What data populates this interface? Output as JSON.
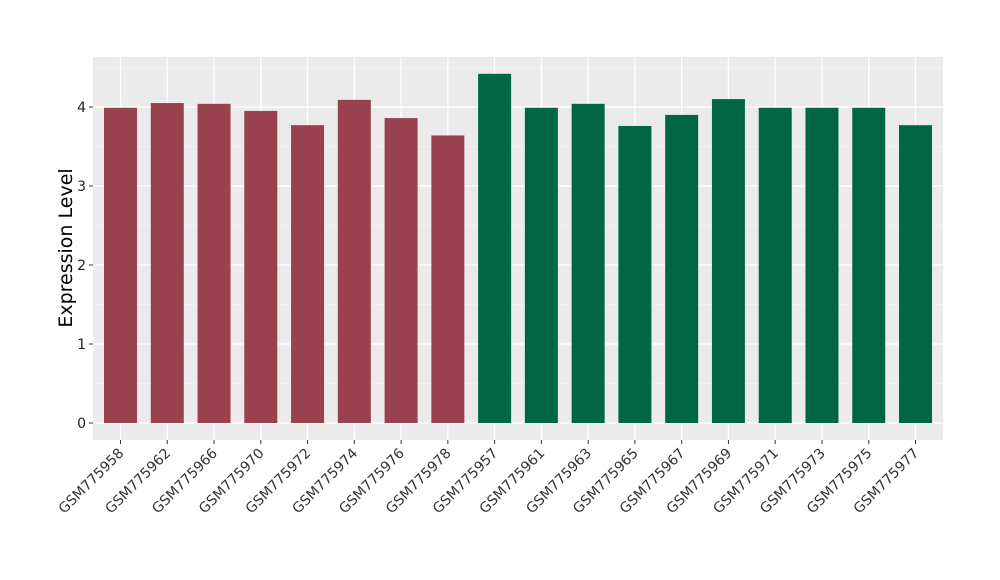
{
  "chart_data": {
    "type": "bar",
    "title": "",
    "xlabel": "",
    "ylabel": "Expression Level",
    "ylim": [
      0,
      4.6
    ],
    "yticks": [
      0,
      1,
      2,
      3,
      4
    ],
    "grid": true,
    "background": "#ebebeb",
    "group_colors": [
      "#99414e",
      "#006644"
    ],
    "categories": [
      "GSM775958",
      "GSM775962",
      "GSM775966",
      "GSM775970",
      "GSM775972",
      "GSM775974",
      "GSM775976",
      "GSM775978",
      "GSM775957",
      "GSM775961",
      "GSM775963",
      "GSM775965",
      "GSM775967",
      "GSM775969",
      "GSM775971",
      "GSM775973",
      "GSM775975",
      "GSM775977"
    ],
    "values": [
      3.99,
      4.05,
      4.04,
      3.95,
      3.77,
      4.09,
      3.86,
      3.64,
      4.42,
      3.99,
      4.04,
      3.76,
      3.9,
      4.1,
      3.99,
      3.99,
      3.99,
      3.77
    ],
    "groups": [
      0,
      0,
      0,
      0,
      0,
      0,
      0,
      0,
      1,
      1,
      1,
      1,
      1,
      1,
      1,
      1,
      1,
      1
    ]
  }
}
